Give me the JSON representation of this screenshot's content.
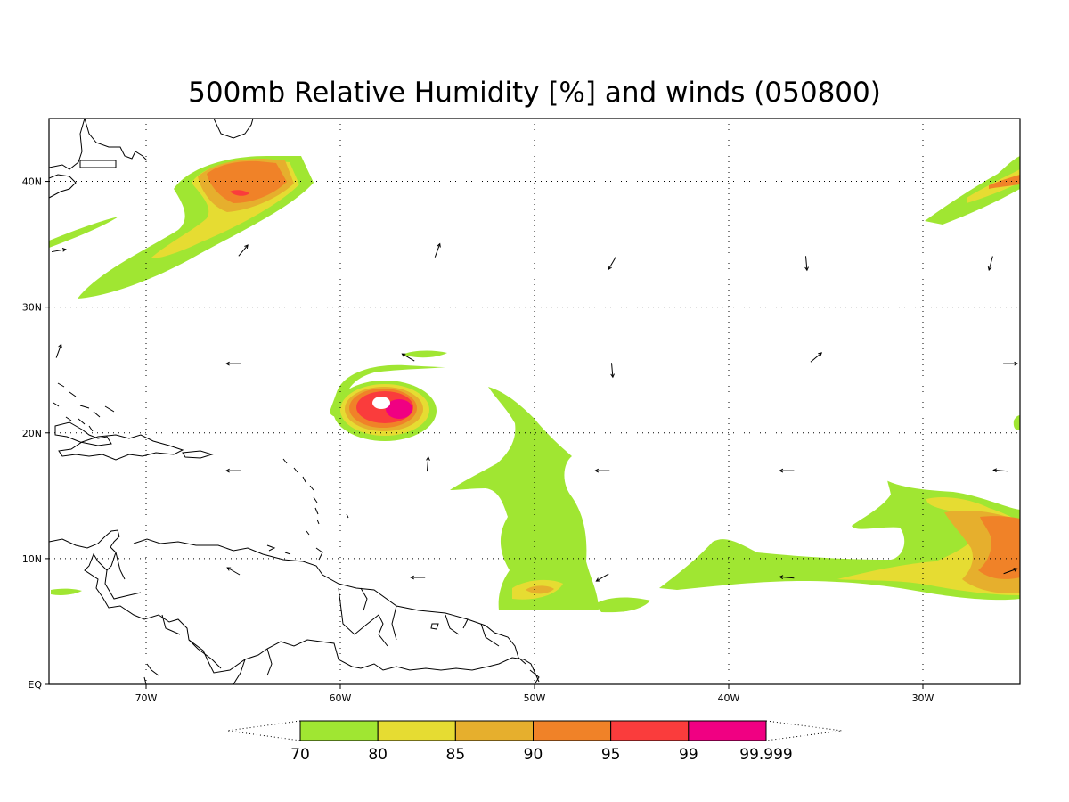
{
  "title": "500mb Relative Humidity [%] and winds (050800)",
  "map": {
    "lon_range": [
      -75,
      -25
    ],
    "lat_range": [
      0,
      45
    ],
    "grid": "dotted",
    "lon_ticks": [
      {
        "value": -70,
        "label": "70W"
      },
      {
        "value": -60,
        "label": "60W"
      },
      {
        "value": -50,
        "label": "50W"
      },
      {
        "value": -40,
        "label": "40W"
      },
      {
        "value": -30,
        "label": "30W"
      }
    ],
    "lat_ticks": [
      {
        "value": 0,
        "label": "EQ"
      },
      {
        "value": 10,
        "label": "10N"
      },
      {
        "value": 20,
        "label": "20N"
      },
      {
        "value": 30,
        "label": "30N"
      },
      {
        "value": 40,
        "label": "40N"
      }
    ]
  },
  "colorbar": {
    "labels": [
      "70",
      "80",
      "85",
      "90",
      "95",
      "99",
      "99.999"
    ],
    "colors": [
      "#a0e632",
      "#e6dc32",
      "#e6af2d",
      "#f08228",
      "#fa3c3c",
      "#f00082"
    ],
    "extend": "both"
  },
  "humidity_levels": {
    "l70": "#a0e632",
    "l80": "#e6dc32",
    "l85": "#e6af2d",
    "l90": "#f08228",
    "l95": "#fa3c3c",
    "l99": "#f00082"
  },
  "wind_vectors": [
    {
      "lon": -74.5,
      "lat": 34.5,
      "dir": 80
    },
    {
      "lon": -65,
      "lat": 34.5,
      "dir": 40
    },
    {
      "lon": -55,
      "lat": 34.5,
      "dir": 20
    },
    {
      "lon": -46,
      "lat": 33.5,
      "dir": 210
    },
    {
      "lon": -36,
      "lat": 33.5,
      "dir": 175
    },
    {
      "lon": -26.5,
      "lat": 33.5,
      "dir": 195
    },
    {
      "lon": -74.5,
      "lat": 26.5,
      "dir": 20
    },
    {
      "lon": -65.5,
      "lat": 25.5,
      "dir": 270
    },
    {
      "lon": -56.5,
      "lat": 26,
      "dir": 300
    },
    {
      "lon": -46,
      "lat": 25,
      "dir": 175
    },
    {
      "lon": -35.5,
      "lat": 26,
      "dir": 50
    },
    {
      "lon": -25.5,
      "lat": 25.5,
      "dir": 90
    },
    {
      "lon": -55.5,
      "lat": 17.5,
      "dir": 5
    },
    {
      "lon": -65.5,
      "lat": 17,
      "dir": 270
    },
    {
      "lon": -46.5,
      "lat": 17,
      "dir": 270
    },
    {
      "lon": -37,
      "lat": 17,
      "dir": 270
    },
    {
      "lon": -26,
      "lat": 17,
      "dir": 275
    },
    {
      "lon": -65.5,
      "lat": 9,
      "dir": 300
    },
    {
      "lon": -56,
      "lat": 8.5,
      "dir": 270
    },
    {
      "lon": -46.5,
      "lat": 8.5,
      "dir": 240
    },
    {
      "lon": -37,
      "lat": 8.5,
      "dir": 275
    },
    {
      "lon": -25.5,
      "lat": 9,
      "dir": 70
    }
  ]
}
